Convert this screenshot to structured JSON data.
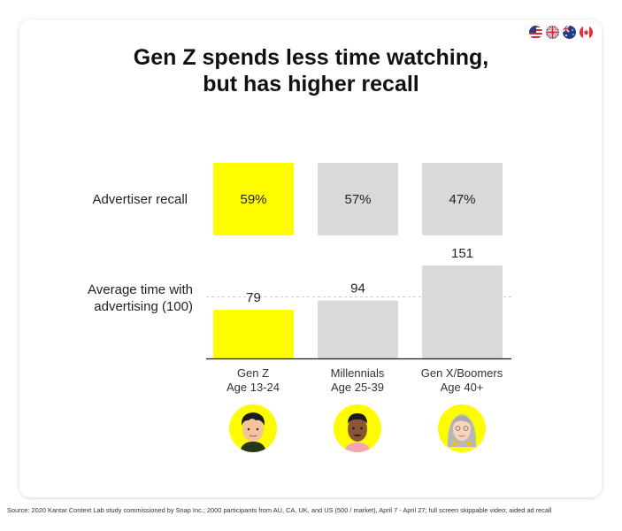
{
  "flags": [
    {
      "name": "us-flag-icon",
      "label": "US"
    },
    {
      "name": "uk-flag-icon",
      "label": "UK"
    },
    {
      "name": "au-flag-icon",
      "label": "AU"
    },
    {
      "name": "ca-flag-icon",
      "label": "CA"
    }
  ],
  "title_line1": "Gen Z spends less time watching,",
  "title_line2": "but has higher recall",
  "colors": {
    "highlight": "#fffc00",
    "neutral": "#d9d9d9",
    "axis": "#1a1a1a",
    "reference_line": "#cccccc"
  },
  "chart_data": {
    "type": "bar",
    "title": "Gen Z spends less time watching, but has higher recall",
    "categories": [
      "Gen Z",
      "Millennials",
      "Gen X/Boomers"
    ],
    "category_sublabels": [
      "Age 13-24",
      "Age 25-39",
      "Age 40+"
    ],
    "series": [
      {
        "name": "Advertiser recall",
        "display": "tiles",
        "values": [
          59,
          57,
          47
        ],
        "value_labels": [
          "59%",
          "57%",
          "47%"
        ],
        "unit": "%"
      },
      {
        "name": "Average time with advertising (100)",
        "display": "bars",
        "values": [
          79,
          94,
          151
        ],
        "value_labels": [
          "79",
          "94",
          "151"
        ],
        "index_baseline": 100
      }
    ],
    "highlight_category": "Gen Z",
    "row_labels": [
      "Advertiser recall",
      "Average time with advertising (100)"
    ],
    "time_label_line1": "Average time with",
    "time_label_line2": "advertising (100)",
    "ylim": [
      0,
      151
    ],
    "reference_line": 100,
    "grid": false,
    "legend": "none"
  },
  "avatars": [
    {
      "name": "gen-z-avatar"
    },
    {
      "name": "millennial-avatar"
    },
    {
      "name": "gen-x-boomer-avatar"
    }
  ],
  "source": "Source: 2020 Kantar Context Lab study commissioned by Snap Inc.; 2000 participants from AU, CA, UK, and US (500 / market), April 7 - April 27; full screen skippable video; aided ad recall"
}
